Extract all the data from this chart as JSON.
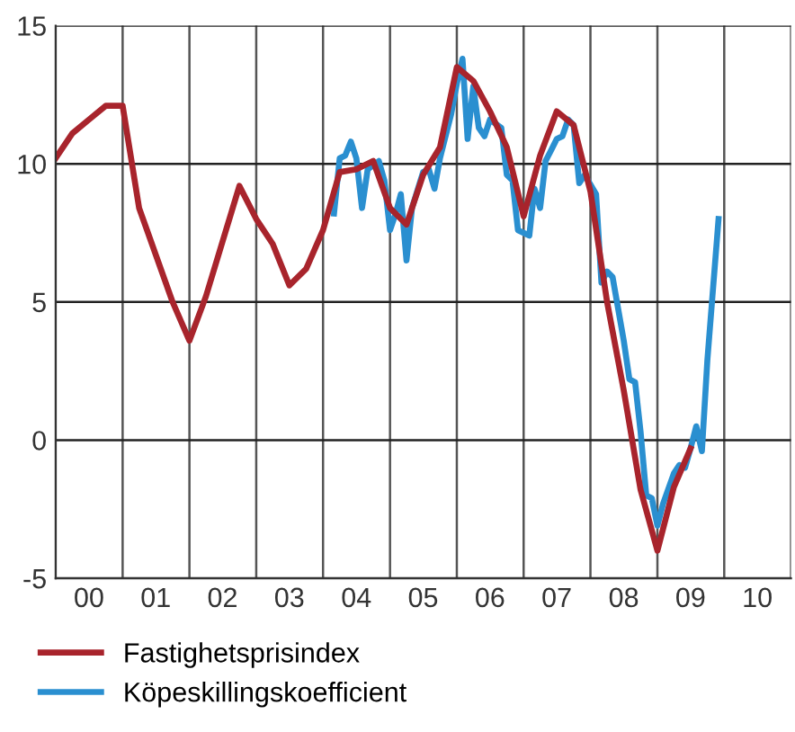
{
  "chart_data": {
    "type": "line",
    "xlim": [
      "2000",
      "2011"
    ],
    "ylim": [
      -5,
      15
    ],
    "yticks": [
      -5,
      0,
      5,
      10,
      15
    ],
    "xticks": [
      {
        "value": "2000",
        "label": null
      },
      {
        "value": "2000-07",
        "label": "00"
      },
      {
        "value": "2001",
        "label": null
      },
      {
        "value": "2001-07",
        "label": "01"
      },
      {
        "value": "2002",
        "label": null
      },
      {
        "value": "2002-07",
        "label": "02"
      },
      {
        "value": "2003",
        "label": null
      },
      {
        "value": "2003-07",
        "label": "03"
      },
      {
        "value": "2004",
        "label": null
      },
      {
        "value": "2004-07",
        "label": "04"
      },
      {
        "value": "2005",
        "label": null
      },
      {
        "value": "2005-07",
        "label": "05"
      },
      {
        "value": "2006",
        "label": null
      },
      {
        "value": "2006-07",
        "label": "06"
      },
      {
        "value": "2007",
        "label": null
      },
      {
        "value": "2007-07",
        "label": "07"
      },
      {
        "value": "2008",
        "label": null
      },
      {
        "value": "2008-07",
        "label": "08"
      },
      {
        "value": "2009",
        "label": null
      },
      {
        "value": "2009-07",
        "label": "09"
      },
      {
        "value": "2010",
        "label": null
      },
      {
        "value": "2010-07",
        "label": "10"
      },
      {
        "value": "2011",
        "label": null
      }
    ],
    "grid": true,
    "legend": "bottom",
    "marker": "none",
    "line_style": "solid",
    "series": [
      {
        "name": "Fastighetsprisindex",
        "color": "#a8242c",
        "x": [
          "2000-01",
          "2000-04",
          "2000-07",
          "2000-10",
          "2001-01",
          "2001-04",
          "2001-10",
          "2002-01",
          "2002-04",
          "2002-10",
          "2003-01",
          "2003-04",
          "2003-07",
          "2003-10",
          "2004-01",
          "2004-04",
          "2004-07",
          "2004-10",
          "2005-01",
          "2005-04",
          "2005-07",
          "2005-10",
          "2006-01",
          "2006-04",
          "2006-07",
          "2006-10",
          "2007-01",
          "2007-04",
          "2007-07",
          "2007-10",
          "2008-01",
          "2008-04",
          "2008-07",
          "2008-10",
          "2009-01",
          "2009-04",
          "2009-07"
        ],
        "values": [
          10.2,
          11.1,
          11.6,
          12.1,
          12.1,
          8.4,
          5.0,
          3.6,
          5.2,
          9.2,
          8.0,
          7.1,
          5.6,
          6.2,
          7.6,
          9.7,
          9.8,
          10.1,
          8.4,
          7.8,
          9.6,
          10.6,
          13.5,
          13.0,
          11.9,
          10.6,
          8.1,
          10.3,
          11.9,
          11.4,
          9.0,
          5.0,
          1.8,
          -1.8,
          -4.0,
          -1.7,
          -0.3
        ]
      },
      {
        "name": "Köpeskillingskoefficient",
        "color": "#2a8fd0",
        "x": [
          "2004-03",
          "2004-04",
          "2004-05",
          "2004-06",
          "2004-07",
          "2004-08",
          "2004-09",
          "2004-11",
          "2004-12",
          "2005-01",
          "2005-02",
          "2005-03",
          "2005-04",
          "2005-05",
          "2005-07",
          "2005-08",
          "2005-09",
          "2005-10",
          "2005-12",
          "2006-01",
          "2006-02",
          "2006-03",
          "2006-04",
          "2006-05",
          "2006-06",
          "2006-07",
          "2006-09",
          "2006-10",
          "2006-11",
          "2006-12",
          "2007-02",
          "2007-03",
          "2007-04",
          "2007-05",
          "2007-06",
          "2007-07",
          "2007-08",
          "2007-09",
          "2007-10",
          "2007-11",
          "2007-12",
          "2008-02",
          "2008-03",
          "2008-04",
          "2008-05",
          "2008-07",
          "2008-08",
          "2008-09",
          "2008-10",
          "2008-11",
          "2008-12",
          "2009-01",
          "2009-02",
          "2009-04",
          "2009-05",
          "2009-06",
          "2009-07",
          "2009-08",
          "2009-09",
          "2009-10",
          "2009-12"
        ],
        "values": [
          8.2,
          10.2,
          10.3,
          10.8,
          10.2,
          8.4,
          9.8,
          10.1,
          9.4,
          7.6,
          8.2,
          8.9,
          6.5,
          8.4,
          9.7,
          9.8,
          9.1,
          10.2,
          11.8,
          12.9,
          13.8,
          10.9,
          12.8,
          11.3,
          11.0,
          11.6,
          11.3,
          9.6,
          9.4,
          7.6,
          7.4,
          9.1,
          8.4,
          10.1,
          10.5,
          10.9,
          11.0,
          11.6,
          11.4,
          9.3,
          9.6,
          8.9,
          5.7,
          6.1,
          5.9,
          3.6,
          2.2,
          2.1,
          0.3,
          -2.0,
          -2.1,
          -3.1,
          -2.3,
          -1.2,
          -0.9,
          -1.0,
          -0.3,
          0.5,
          -0.4,
          2.9,
          8.0
        ]
      }
    ]
  }
}
